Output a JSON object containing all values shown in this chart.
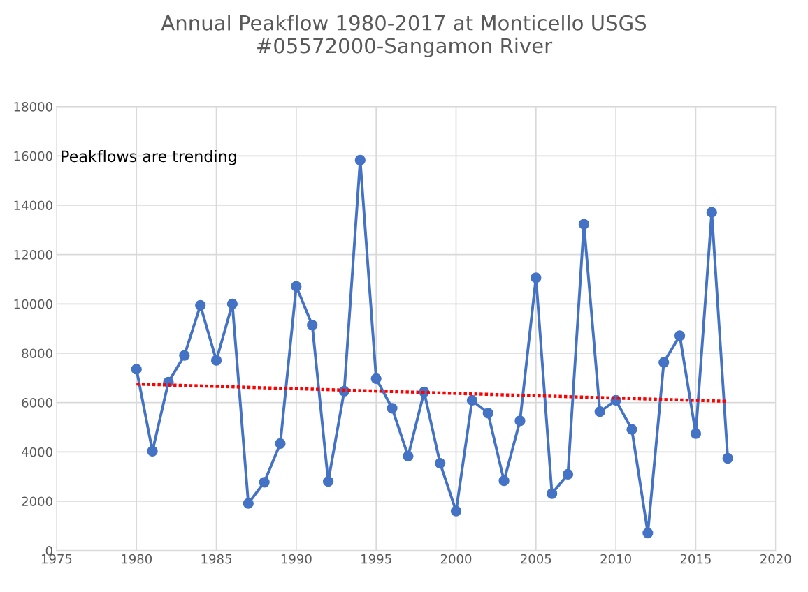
{
  "chart_data": {
    "type": "line",
    "title": "Annual Peakflow 1980-2017 at Monticello USGS\n#05572000-Sangamon River",
    "x": [
      1980,
      1981,
      1982,
      1983,
      1984,
      1985,
      1986,
      1987,
      1988,
      1989,
      1990,
      1991,
      1992,
      1993,
      1994,
      1995,
      1996,
      1997,
      1998,
      1999,
      2000,
      2001,
      2002,
      2003,
      2004,
      2005,
      2006,
      2007,
      2008,
      2009,
      2010,
      2011,
      2012,
      2013,
      2014,
      2015,
      2016,
      2017
    ],
    "series": [
      {
        "color": "#4472c4",
        "marker": "circle",
        "line_style": "solid",
        "values": [
          7350,
          4030,
          6830,
          7910,
          9940,
          7710,
          10000,
          1910,
          2770,
          4340,
          10710,
          9140,
          2800,
          6460,
          15830,
          6970,
          5770,
          3830,
          6430,
          3540,
          1600,
          6090,
          5570,
          2830,
          5260,
          11060,
          2310,
          3090,
          13230,
          5630,
          6090,
          4910,
          710,
          7630,
          8710,
          4740,
          13710,
          3740
        ]
      },
      {
        "color": "#ff0000",
        "marker": "none",
        "line_style": "dotted",
        "x": [
          1980,
          2017
        ],
        "values": [
          6750,
          6050
        ]
      }
    ],
    "annotations": [
      "Peakflows are trending"
    ],
    "xlim": [
      1975,
      2020
    ],
    "xticks": [
      1975,
      1980,
      1985,
      1990,
      1995,
      2000,
      2005,
      2010,
      2015,
      2020
    ],
    "ylim": [
      0,
      18000
    ],
    "yticks": [
      0,
      2000,
      4000,
      6000,
      8000,
      10000,
      12000,
      14000,
      16000,
      18000
    ],
    "grid": true,
    "legend": false
  }
}
